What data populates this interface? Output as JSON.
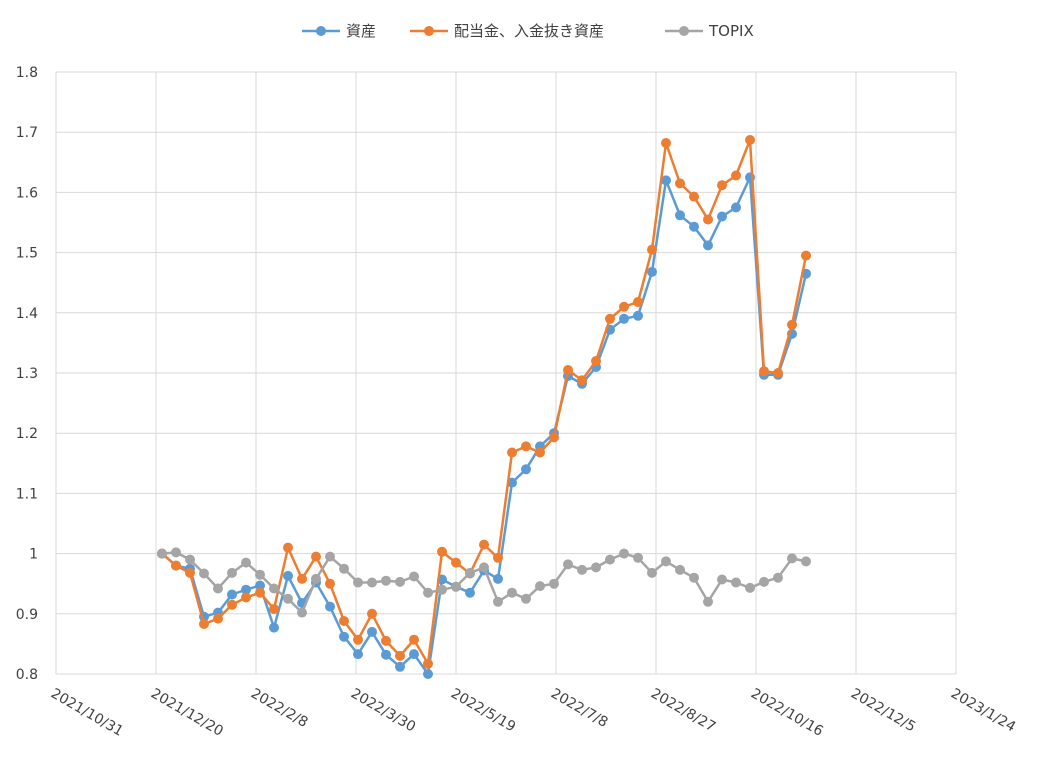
{
  "chart_data": {
    "type": "line",
    "x_axis": {
      "type": "date",
      "min": "2021-10-31",
      "max": "2023-01-24",
      "tick_labels": [
        "2021/10/31",
        "2021/12/20",
        "2022/2/8",
        "2022/3/30",
        "2022/5/19",
        "2022/7/8",
        "2022/8/27",
        "2022/10/16",
        "2022/12/5",
        "2023/1/24"
      ]
    },
    "y_axis": {
      "min": 0.8,
      "max": 1.8,
      "tick_labels": [
        "0.8",
        "0.9",
        "1",
        "1.1",
        "1.2",
        "1.3",
        "1.4",
        "1.5",
        "1.6",
        "1.7",
        "1.8"
      ]
    },
    "grid": true,
    "legend_position": "top",
    "series": [
      {
        "name": "資産",
        "color": "#5B9BD5",
        "points": [
          [
            "2021-12-23",
            1.0
          ],
          [
            "2021-12-30",
            0.98
          ],
          [
            "2022-01-06",
            0.975
          ],
          [
            "2022-01-13",
            0.895
          ],
          [
            "2022-01-20",
            0.902
          ],
          [
            "2022-01-27",
            0.932
          ],
          [
            "2022-02-03",
            0.94
          ],
          [
            "2022-02-10",
            0.947
          ],
          [
            "2022-02-17",
            0.877
          ],
          [
            "2022-02-24",
            0.963
          ],
          [
            "2022-03-03",
            0.918
          ],
          [
            "2022-03-10",
            0.952
          ],
          [
            "2022-03-17",
            0.912
          ],
          [
            "2022-03-24",
            0.862
          ],
          [
            "2022-03-31",
            0.833
          ],
          [
            "2022-04-07",
            0.87
          ],
          [
            "2022-04-14",
            0.832
          ],
          [
            "2022-04-21",
            0.812
          ],
          [
            "2022-04-28",
            0.833
          ],
          [
            "2022-05-05",
            0.8
          ],
          [
            "2022-05-12",
            0.957
          ],
          [
            "2022-05-19",
            0.945
          ],
          [
            "2022-05-26",
            0.935
          ],
          [
            "2022-06-02",
            0.972
          ],
          [
            "2022-06-09",
            0.958
          ],
          [
            "2022-06-16",
            1.118
          ],
          [
            "2022-06-23",
            1.14
          ],
          [
            "2022-06-30",
            1.178
          ],
          [
            "2022-07-07",
            1.2
          ],
          [
            "2022-07-14",
            1.295
          ],
          [
            "2022-07-21",
            1.282
          ],
          [
            "2022-07-28",
            1.31
          ],
          [
            "2022-08-04",
            1.372
          ],
          [
            "2022-08-11",
            1.39
          ],
          [
            "2022-08-18",
            1.395
          ],
          [
            "2022-08-25",
            1.468
          ],
          [
            "2022-09-01",
            1.62
          ],
          [
            "2022-09-08",
            1.562
          ],
          [
            "2022-09-15",
            1.543
          ],
          [
            "2022-09-22",
            1.512
          ],
          [
            "2022-09-29",
            1.56
          ],
          [
            "2022-10-06",
            1.575
          ],
          [
            "2022-10-13",
            1.625
          ],
          [
            "2022-10-20",
            1.297
          ],
          [
            "2022-10-27",
            1.297
          ],
          [
            "2022-11-03",
            1.365
          ],
          [
            "2022-11-10",
            1.465
          ]
        ]
      },
      {
        "name": "配当金、入金抜き資産",
        "color": "#ED7D31",
        "points": [
          [
            "2021-12-23",
            1.0
          ],
          [
            "2021-12-30",
            0.98
          ],
          [
            "2022-01-06",
            0.968
          ],
          [
            "2022-01-13",
            0.883
          ],
          [
            "2022-01-20",
            0.892
          ],
          [
            "2022-01-27",
            0.915
          ],
          [
            "2022-02-03",
            0.927
          ],
          [
            "2022-02-10",
            0.935
          ],
          [
            "2022-02-17",
            0.908
          ],
          [
            "2022-02-24",
            1.01
          ],
          [
            "2022-03-03",
            0.958
          ],
          [
            "2022-03-10",
            0.995
          ],
          [
            "2022-03-17",
            0.95
          ],
          [
            "2022-03-24",
            0.888
          ],
          [
            "2022-03-31",
            0.857
          ],
          [
            "2022-04-07",
            0.9
          ],
          [
            "2022-04-14",
            0.855
          ],
          [
            "2022-04-21",
            0.83
          ],
          [
            "2022-04-28",
            0.857
          ],
          [
            "2022-05-05",
            0.817
          ],
          [
            "2022-05-12",
            1.003
          ],
          [
            "2022-05-19",
            0.985
          ],
          [
            "2022-05-26",
            0.967
          ],
          [
            "2022-06-02",
            1.015
          ],
          [
            "2022-06-09",
            0.993
          ],
          [
            "2022-06-16",
            1.168
          ],
          [
            "2022-06-23",
            1.178
          ],
          [
            "2022-06-30",
            1.168
          ],
          [
            "2022-07-07",
            1.193
          ],
          [
            "2022-07-14",
            1.305
          ],
          [
            "2022-07-21",
            1.288
          ],
          [
            "2022-07-28",
            1.32
          ],
          [
            "2022-08-04",
            1.39
          ],
          [
            "2022-08-11",
            1.41
          ],
          [
            "2022-08-18",
            1.418
          ],
          [
            "2022-08-25",
            1.505
          ],
          [
            "2022-09-01",
            1.682
          ],
          [
            "2022-09-08",
            1.615
          ],
          [
            "2022-09-15",
            1.593
          ],
          [
            "2022-09-22",
            1.555
          ],
          [
            "2022-09-29",
            1.612
          ],
          [
            "2022-10-06",
            1.628
          ],
          [
            "2022-10-13",
            1.687
          ],
          [
            "2022-10-20",
            1.303
          ],
          [
            "2022-10-27",
            1.3
          ],
          [
            "2022-11-03",
            1.38
          ],
          [
            "2022-11-10",
            1.495
          ]
        ]
      },
      {
        "name": "TOPIX",
        "color": "#A5A5A5",
        "points": [
          [
            "2021-12-23",
            1.0
          ],
          [
            "2021-12-30",
            1.002
          ],
          [
            "2022-01-06",
            0.99
          ],
          [
            "2022-01-13",
            0.967
          ],
          [
            "2022-01-20",
            0.942
          ],
          [
            "2022-01-27",
            0.968
          ],
          [
            "2022-02-03",
            0.985
          ],
          [
            "2022-02-10",
            0.965
          ],
          [
            "2022-02-17",
            0.942
          ],
          [
            "2022-02-24",
            0.925
          ],
          [
            "2022-03-03",
            0.902
          ],
          [
            "2022-03-10",
            0.958
          ],
          [
            "2022-03-17",
            0.995
          ],
          [
            "2022-03-24",
            0.975
          ],
          [
            "2022-03-31",
            0.952
          ],
          [
            "2022-04-07",
            0.952
          ],
          [
            "2022-04-14",
            0.955
          ],
          [
            "2022-04-21",
            0.953
          ],
          [
            "2022-04-28",
            0.962
          ],
          [
            "2022-05-05",
            0.935
          ],
          [
            "2022-05-12",
            0.94
          ],
          [
            "2022-05-19",
            0.945
          ],
          [
            "2022-05-26",
            0.968
          ],
          [
            "2022-06-02",
            0.977
          ],
          [
            "2022-06-09",
            0.92
          ],
          [
            "2022-06-16",
            0.935
          ],
          [
            "2022-06-23",
            0.925
          ],
          [
            "2022-06-30",
            0.946
          ],
          [
            "2022-07-07",
            0.95
          ],
          [
            "2022-07-14",
            0.982
          ],
          [
            "2022-07-21",
            0.973
          ],
          [
            "2022-07-28",
            0.977
          ],
          [
            "2022-08-04",
            0.99
          ],
          [
            "2022-08-11",
            1.0
          ],
          [
            "2022-08-18",
            0.993
          ],
          [
            "2022-08-25",
            0.968
          ],
          [
            "2022-09-01",
            0.987
          ],
          [
            "2022-09-08",
            0.973
          ],
          [
            "2022-09-15",
            0.96
          ],
          [
            "2022-09-22",
            0.92
          ],
          [
            "2022-09-29",
            0.957
          ],
          [
            "2022-10-06",
            0.952
          ],
          [
            "2022-10-13",
            0.943
          ],
          [
            "2022-10-20",
            0.953
          ],
          [
            "2022-10-27",
            0.96
          ],
          [
            "2022-11-03",
            0.992
          ],
          [
            "2022-11-10",
            0.987
          ]
        ]
      }
    ]
  }
}
